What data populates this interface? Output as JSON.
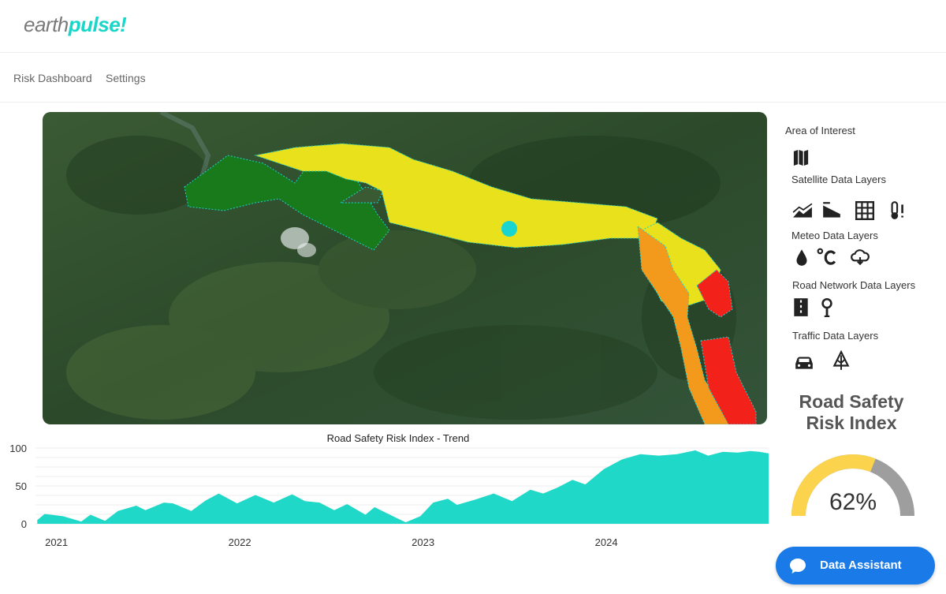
{
  "app": {
    "logo_part1": "earth",
    "logo_part2": "pulse!"
  },
  "nav": {
    "items": [
      {
        "label": "Risk Dashboard"
      },
      {
        "label": "Settings"
      }
    ]
  },
  "sidebar": {
    "area_of_interest": "Area of Interest",
    "satellite_layers": "Satellite Data Layers",
    "meteo_layers": "Meteo  Data Layers",
    "road_layers": "Road Network  Data Layers",
    "traffic_layers": "Traffic Data Layers",
    "icons": {
      "area": [
        "map-icon"
      ],
      "satellite": [
        "terrain-icon",
        "slope-icon",
        "grid-icon",
        "temperature-alert-icon"
      ],
      "meteo": [
        "rain-drop-icon",
        "celsius-icon",
        "cloud-rain-icon"
      ],
      "road": [
        "road-icon",
        "signpost-icon"
      ],
      "traffic": [
        "car-icon",
        "tree-icon"
      ]
    }
  },
  "risk_index": {
    "title_line1": "Road Safety",
    "title_line2": "Risk Index",
    "value": 62,
    "value_label": "62%",
    "fill_color": "#fcd34d",
    "track_color": "#9e9e9e"
  },
  "assistant": {
    "label": "Data Assistant",
    "color": "#1a7be8"
  },
  "chart_data": {
    "type": "area",
    "title": "Road Safety Risk Index - Trend",
    "color": "#20d8c8",
    "ylim": [
      0,
      100
    ],
    "yticks": [
      0,
      50,
      100
    ],
    "xticks": [
      2021,
      2022,
      2023,
      2024
    ],
    "xlim": [
      2020.95,
      2024.95
    ],
    "grid": true,
    "x": [
      2020.96,
      2021.0,
      2021.1,
      2021.2,
      2021.25,
      2021.33,
      2021.4,
      2021.5,
      2021.55,
      2021.65,
      2021.7,
      2021.8,
      2021.88,
      2021.95,
      2022.05,
      2022.15,
      2022.25,
      2022.35,
      2022.42,
      2022.5,
      2022.58,
      2022.65,
      2022.75,
      2022.8,
      2022.9,
      2022.97,
      2023.05,
      2023.12,
      2023.2,
      2023.25,
      2023.35,
      2023.45,
      2023.55,
      2023.65,
      2023.72,
      2023.8,
      2023.88,
      2023.95,
      2024.05,
      2024.15,
      2024.25,
      2024.35,
      2024.45,
      2024.55,
      2024.62,
      2024.7,
      2024.78,
      2024.85,
      2024.9,
      2024.95
    ],
    "y": [
      5,
      13,
      10,
      3,
      12,
      4,
      17,
      24,
      18,
      28,
      27,
      17,
      31,
      40,
      27,
      38,
      28,
      39,
      30,
      28,
      18,
      26,
      12,
      22,
      10,
      2,
      10,
      28,
      33,
      25,
      32,
      40,
      30,
      45,
      40,
      48,
      58,
      52,
      72,
      85,
      92,
      90,
      92,
      97,
      90,
      95,
      94,
      96,
      95,
      93
    ]
  },
  "map": {
    "colors": {
      "low": "#187a1a",
      "medium": "#e8e11c",
      "high": "#f39a1c",
      "critical": "#f2221b",
      "marker": "#19d4cf"
    }
  }
}
